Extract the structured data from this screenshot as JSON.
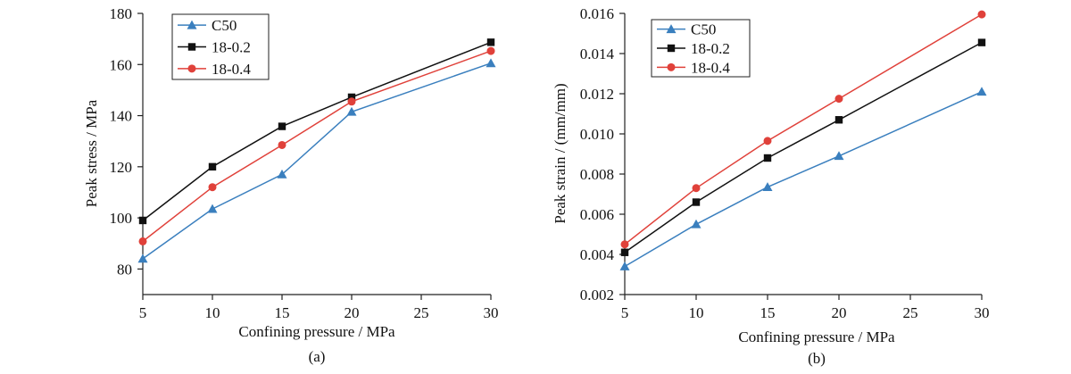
{
  "chart_data": [
    {
      "type": "line",
      "caption": "(a)",
      "xlabel": "Confining pressure / MPa",
      "ylabel": "Peak stress / MPa",
      "x_ticks": [
        5,
        10,
        15,
        20,
        25,
        30
      ],
      "y_ticks": [
        80,
        100,
        120,
        140,
        160,
        180
      ],
      "xlim": [
        5,
        30
      ],
      "ylim": [
        70,
        180
      ],
      "legend_position": "top-left",
      "series": [
        {
          "name": "C50",
          "color": "#3a7fbe",
          "marker": "triangle",
          "x": [
            5,
            10,
            15,
            20,
            30
          ],
          "values": [
            84,
            103.5,
            117,
            141.5,
            160.5
          ]
        },
        {
          "name": "18-0.2",
          "color": "#111111",
          "marker": "square",
          "x": [
            5,
            10,
            15,
            20,
            30
          ],
          "values": [
            99,
            120,
            135.8,
            147.2,
            168.7
          ]
        },
        {
          "name": "18-0.4",
          "color": "#e0413a",
          "marker": "circle",
          "x": [
            5,
            10,
            15,
            20,
            30
          ],
          "values": [
            90.8,
            112,
            128.5,
            145.5,
            165.3
          ]
        }
      ]
    },
    {
      "type": "line",
      "caption": "(b)",
      "xlabel": "Confining pressure / MPa",
      "ylabel": "Peak strain / (mm/mm)",
      "x_ticks": [
        5,
        10,
        15,
        20,
        25,
        30
      ],
      "y_ticks": [
        0.002,
        0.004,
        0.006,
        0.008,
        0.01,
        0.012,
        0.014,
        0.016
      ],
      "y_tick_labels": [
        "0.002",
        "0.004",
        "0.006",
        "0.008",
        "0.010",
        "0.012",
        "0.014",
        "0.016"
      ],
      "xlim": [
        5,
        30
      ],
      "ylim": [
        0.002,
        0.016
      ],
      "legend_position": "top-left",
      "series": [
        {
          "name": "C50",
          "color": "#3a7fbe",
          "marker": "triangle",
          "x": [
            5,
            10,
            15,
            20,
            30
          ],
          "values": [
            0.0034,
            0.0055,
            0.00735,
            0.0089,
            0.0121
          ]
        },
        {
          "name": "18-0.2",
          "color": "#111111",
          "marker": "square",
          "x": [
            5,
            10,
            15,
            20,
            30
          ],
          "values": [
            0.0041,
            0.0066,
            0.0088,
            0.0107,
            0.01455
          ]
        },
        {
          "name": "18-0.4",
          "color": "#e0413a",
          "marker": "circle",
          "x": [
            5,
            10,
            15,
            20,
            30
          ],
          "values": [
            0.0045,
            0.0073,
            0.00965,
            0.01175,
            0.01595
          ]
        }
      ]
    }
  ]
}
